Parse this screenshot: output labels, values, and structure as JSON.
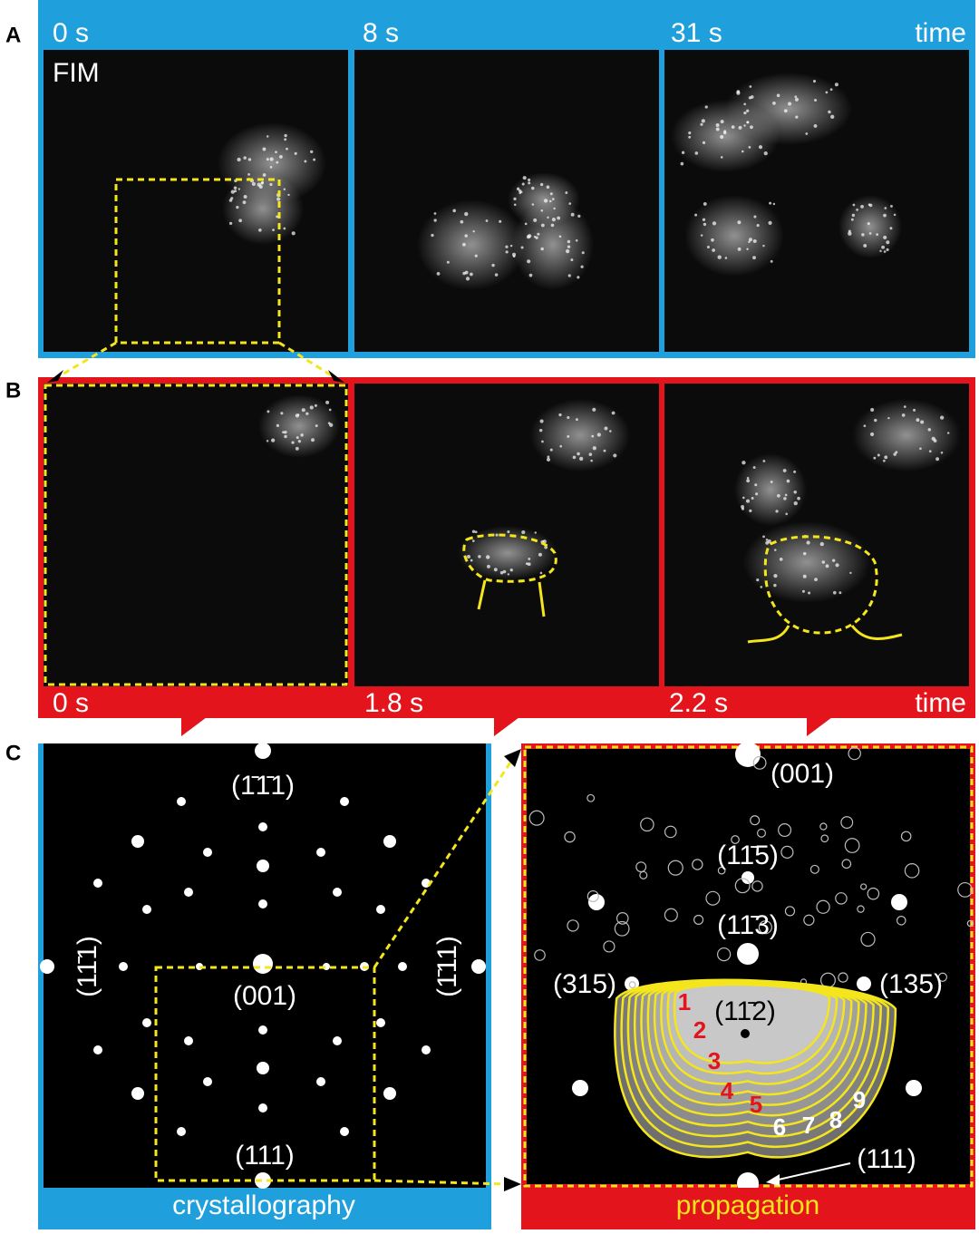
{
  "panels": [
    {
      "label": "A",
      "times": [
        "0 s",
        "8 s",
        "31 s"
      ],
      "time_axis": "time",
      "image_label": "FIM"
    },
    {
      "label": "B",
      "times": [
        "0 s",
        "1.8 s",
        "2.2 s"
      ],
      "time_axis": "time"
    },
    {
      "label": "C",
      "left": {
        "caption": "crystallography",
        "poles": [
          "(1̄1̄1)",
          "(11̄1)",
          "(1̄11)",
          "(001)",
          "(111)"
        ]
      },
      "right": {
        "caption": "propagation",
        "poles": [
          "(001)",
          "(11̄5)",
          "(11̄3)",
          "(315)",
          "(135)",
          "(11̄2)",
          "(111)"
        ],
        "steps": [
          "1",
          "2",
          "3",
          "4",
          "5",
          "6",
          "7",
          "8",
          "9"
        ]
      }
    }
  ]
}
